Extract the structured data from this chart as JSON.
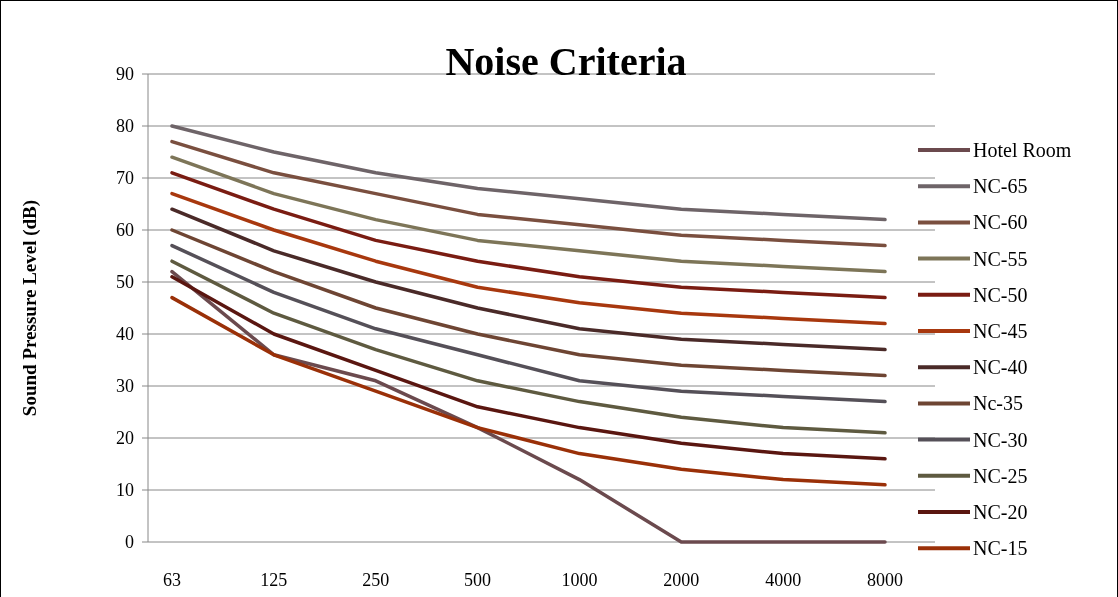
{
  "chart_data": {
    "type": "line",
    "title": "Noise Criteria",
    "ylabel": "Sound Pressure Level (dB)",
    "categories": [
      "63",
      "125",
      "250",
      "500",
      "1000",
      "2000",
      "4000",
      "8000"
    ],
    "ylim": [
      0,
      90
    ],
    "yticks": [
      0,
      10,
      20,
      30,
      40,
      50,
      60,
      70,
      80,
      90
    ],
    "grid": "y",
    "legend": "right",
    "marker": "none",
    "series": [
      {
        "name": "Hotel Room",
        "color": "#6b4a4e",
        "values": [
          52,
          36,
          31,
          22,
          12,
          0,
          0,
          0
        ]
      },
      {
        "name": "NC-65",
        "color": "#6e6468",
        "values": [
          80,
          75,
          71,
          68,
          66,
          64,
          63,
          62
        ]
      },
      {
        "name": "NC-60",
        "color": "#7a4f3f",
        "values": [
          77,
          71,
          67,
          63,
          61,
          59,
          58,
          57
        ]
      },
      {
        "name": "NC-55",
        "color": "#7d7558",
        "values": [
          74,
          67,
          62,
          58,
          56,
          54,
          53,
          52
        ]
      },
      {
        "name": "NC-50",
        "color": "#7a1c12",
        "values": [
          71,
          64,
          58,
          54,
          51,
          49,
          48,
          47
        ]
      },
      {
        "name": "NC-45",
        "color": "#a8380e",
        "values": [
          67,
          60,
          54,
          49,
          46,
          44,
          43,
          42
        ]
      },
      {
        "name": "NC-40",
        "color": "#4a2a28",
        "values": [
          64,
          56,
          50,
          45,
          41,
          39,
          38,
          37
        ]
      },
      {
        "name": "Nc-35",
        "color": "#6e4533",
        "values": [
          60,
          52,
          45,
          40,
          36,
          34,
          33,
          32
        ]
      },
      {
        "name": "NC-30",
        "color": "#555058",
        "values": [
          57,
          48,
          41,
          36,
          31,
          29,
          28,
          27
        ]
      },
      {
        "name": "NC-25",
        "color": "#5e5a40",
        "values": [
          54,
          44,
          37,
          31,
          27,
          24,
          22,
          21
        ]
      },
      {
        "name": "NC-20",
        "color": "#5a1610",
        "values": [
          51,
          40,
          33,
          26,
          22,
          19,
          17,
          16
        ]
      },
      {
        "name": "NC-15",
        "color": "#9a3008",
        "values": [
          47,
          36,
          29,
          22,
          17,
          14,
          12,
          11
        ]
      }
    ]
  }
}
